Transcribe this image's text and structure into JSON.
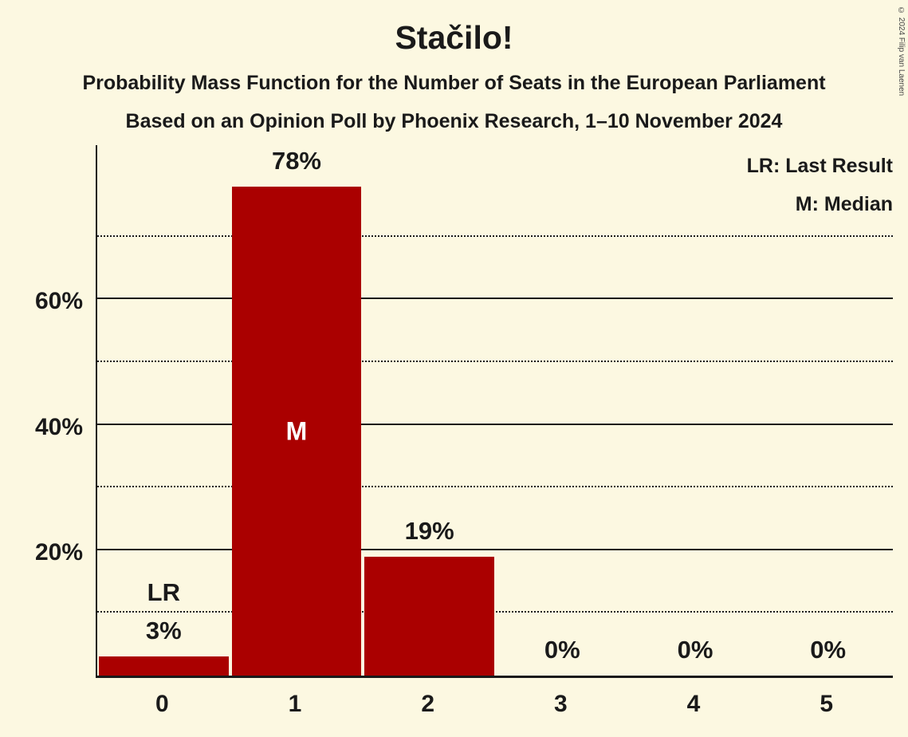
{
  "header": {
    "title": "Stačilo!",
    "subtitle1": "Probability Mass Function for the Number of Seats in the European Parliament",
    "subtitle2": "Based on an Opinion Poll by Phoenix Research, 1–10 November 2024"
  },
  "legend": {
    "lr": "LR: Last Result",
    "m": "M: Median"
  },
  "copyright": "© 2024 Filip van Laenen",
  "colors": {
    "background": "#FCF8E1",
    "bar": "#AA0000",
    "text": "#1A1A1A",
    "bar_inside_label": "#FFFFFF"
  },
  "chart_data": {
    "type": "bar",
    "title": "Stačilo!",
    "categories": [
      "0",
      "1",
      "2",
      "3",
      "4",
      "5"
    ],
    "values": [
      3,
      78,
      19,
      0,
      0,
      0
    ],
    "value_labels": [
      "3%",
      "78%",
      "19%",
      "0%",
      "0%",
      "0%"
    ],
    "top_labels": [
      "LR",
      "",
      "",
      "",
      "",
      ""
    ],
    "inside_labels": [
      "",
      "M",
      "",
      "",
      "",
      ""
    ],
    "xlabel": "",
    "ylabel": "",
    "y_axis": {
      "max": 85,
      "tick_values": [
        20,
        40,
        60
      ],
      "tick_labels": [
        "20%",
        "40%",
        "60%"
      ],
      "solid_gridlines": [
        20,
        40,
        60
      ],
      "dotted_gridlines": [
        10,
        30,
        50,
        70
      ]
    },
    "legend_entries": [
      "LR: Last Result",
      "M: Median"
    ],
    "legend_position": "top-right",
    "grid": true
  }
}
